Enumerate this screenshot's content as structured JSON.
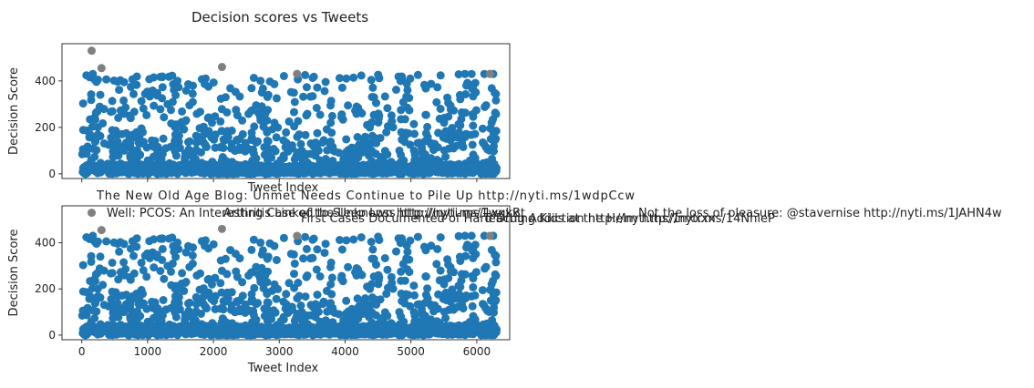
{
  "chart_data": {
    "type": "scatter",
    "title": "Decision scores vs Tweets",
    "colors": {
      "points": "#1f77b4",
      "highlight": "#808080"
    },
    "grid": false,
    "subplots": [
      {
        "xlabel": "Tweet Index",
        "ylabel": "Decision Score",
        "xlim": [
          -300,
          6500
        ],
        "ylim": [
          -20,
          560
        ],
        "yticks": [
          0,
          200,
          400
        ],
        "xticks": [],
        "highlight_points": [
          {
            "x": 150,
            "y": 530
          },
          {
            "x": 300,
            "y": 455
          },
          {
            "x": 2130,
            "y": 460
          },
          {
            "x": 3270,
            "y": 430
          },
          {
            "x": 6200,
            "y": 430
          }
        ],
        "annotations": []
      },
      {
        "xlabel": "Tweet Index",
        "ylabel": "Decision Score",
        "xlim": [
          -300,
          6500
        ],
        "ylim": [
          -20,
          560
        ],
        "yticks": [
          0,
          200,
          400
        ],
        "xticks": [
          0,
          1000,
          2000,
          3000,
          4000,
          5000,
          6000
        ],
        "highlight_points": [
          {
            "x": 150,
            "y": 530
          },
          {
            "x": 300,
            "y": 455
          },
          {
            "x": 2130,
            "y": 460
          },
          {
            "x": 3270,
            "y": 430
          },
          {
            "x": 6200,
            "y": 430
          }
        ],
        "annotations": [
          "The New Old Age Blog: Unmet Needs Continue to Pile Up http://nyti.ms/1wdpCcw",
          "Well: PCOS: An Interesting Case of the Unknown http://nyti.ms/1wgkBt",
          "Arthritis Linked to Sleep Loss http://nyti.ms/1xxxx",
          "Not the loss of pleasure: @stavernise http://nyti.ms/1JAHN4w",
          "First Cases Documented of Hard Drug Addiction http://nyti.ms/1nxxxx",
          "Teaching Kids at the Helm http://nyti.ms/14NhleP"
        ]
      }
    ]
  }
}
